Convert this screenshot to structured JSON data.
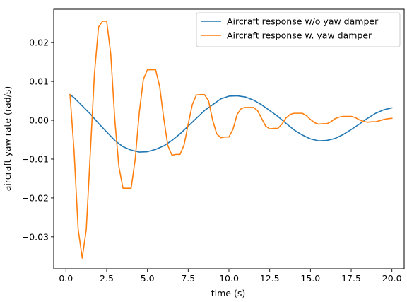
{
  "chart_data": {
    "type": "line",
    "title": "",
    "xlabel": "time (s)",
    "ylabel": "aircraft yaw rate (rad/s)",
    "xlim": [
      -0.75,
      20.75
    ],
    "ylim": [
      -0.03822,
      0.02858
    ],
    "xticks": [
      0.0,
      2.5,
      5.0,
      7.5,
      10.0,
      12.5,
      15.0,
      17.5,
      20.0
    ],
    "xtick_labels": [
      "0.0",
      "2.5",
      "5.0",
      "7.5",
      "10.0",
      "12.5",
      "15.0",
      "17.5",
      "20.0"
    ],
    "yticks": [
      -0.03,
      -0.02,
      -0.01,
      0.0,
      0.01,
      0.02
    ],
    "ytick_labels": [
      "−0.03",
      "−0.02",
      "−0.01",
      "0.00",
      "0.01",
      "0.02"
    ],
    "grid": false,
    "legend_position": "top-right",
    "series": [
      {
        "name": "Aircraft response w/o yaw damper",
        "color": "#1f77b4",
        "x": [
          0.25,
          0.5,
          1.0,
          1.5,
          2.0,
          2.5,
          3.0,
          3.5,
          4.0,
          4.5,
          5.0,
          5.5,
          6.0,
          6.5,
          7.0,
          7.5,
          8.0,
          8.5,
          9.0,
          9.5,
          10.0,
          10.5,
          11.0,
          11.5,
          12.0,
          12.5,
          13.0,
          13.5,
          14.0,
          14.5,
          15.0,
          15.5,
          16.0,
          16.5,
          17.0,
          17.5,
          18.0,
          18.5,
          19.0,
          19.5,
          20.0
        ],
        "y": [
          0.0066,
          0.0058,
          0.0037,
          0.0016,
          -0.0008,
          -0.003,
          -0.0052,
          -0.0068,
          -0.0077,
          -0.0082,
          -0.0081,
          -0.0075,
          -0.0066,
          -0.0052,
          -0.0035,
          -0.0015,
          0.0005,
          0.0025,
          0.004,
          0.0055,
          0.0062,
          0.0063,
          0.006,
          0.0052,
          0.004,
          0.0025,
          0.001,
          -0.0008,
          -0.0025,
          -0.0038,
          -0.0048,
          -0.0053,
          -0.0052,
          -0.0047,
          -0.0037,
          -0.0024,
          -0.001,
          0.0005,
          0.0018,
          0.0027,
          0.0032
        ]
      },
      {
        "name": "Aircraft response w. yaw damper",
        "color": "#ff7f0e",
        "x": [
          0.25,
          0.5,
          0.75,
          1.0,
          1.25,
          1.5,
          1.75,
          2.0,
          2.25,
          2.5,
          2.75,
          3.0,
          3.25,
          3.5,
          3.75,
          4.0,
          4.25,
          4.5,
          4.75,
          5.0,
          5.25,
          5.5,
          5.75,
          6.0,
          6.25,
          6.5,
          6.75,
          7.0,
          7.25,
          7.5,
          7.75,
          8.0,
          8.25,
          8.5,
          8.75,
          9.0,
          9.25,
          9.5,
          9.75,
          10.0,
          10.25,
          10.5,
          10.75,
          11.0,
          11.25,
          11.5,
          11.75,
          12.0,
          12.25,
          12.5,
          12.75,
          13.0,
          13.25,
          13.5,
          13.75,
          14.0,
          14.25,
          14.5,
          14.75,
          15.0,
          15.25,
          15.5,
          15.75,
          16.0,
          16.25,
          16.5,
          16.75,
          17.0,
          17.25,
          17.5,
          17.75,
          18.0,
          18.25,
          18.5,
          18.75,
          19.0,
          19.25,
          19.5,
          19.75,
          20.0
        ],
        "y": [
          0.0066,
          -0.008,
          -0.028,
          -0.0355,
          -0.028,
          -0.008,
          0.012,
          0.024,
          0.0255,
          0.0255,
          0.017,
          0.0,
          -0.012,
          -0.0175,
          -0.0175,
          -0.0175,
          -0.01,
          0.002,
          0.0105,
          0.013,
          0.013,
          0.013,
          0.0087,
          0.0005,
          -0.0065,
          -0.009,
          -0.0088,
          -0.0088,
          -0.0063,
          -0.001,
          0.004,
          0.0065,
          0.0066,
          0.0066,
          0.005,
          0.0,
          -0.0035,
          -0.0045,
          -0.0043,
          -0.0043,
          -0.0023,
          0.0015,
          0.003,
          0.0033,
          0.0033,
          0.0033,
          0.0025,
          0.0005,
          -0.0015,
          -0.0022,
          -0.0021,
          -0.0021,
          -0.001,
          0.0006,
          0.0015,
          0.0018,
          0.0018,
          0.0018,
          0.0012,
          0.0002,
          -0.0006,
          -0.001,
          -0.0009,
          -0.0009,
          -0.0004,
          0.0004,
          0.0008,
          0.001,
          0.001,
          0.001,
          0.0007,
          0.0001,
          -0.0003,
          -0.0005,
          -0.0004,
          -0.0004,
          -0.0001,
          0.0002,
          0.0004,
          0.0005
        ]
      }
    ]
  }
}
